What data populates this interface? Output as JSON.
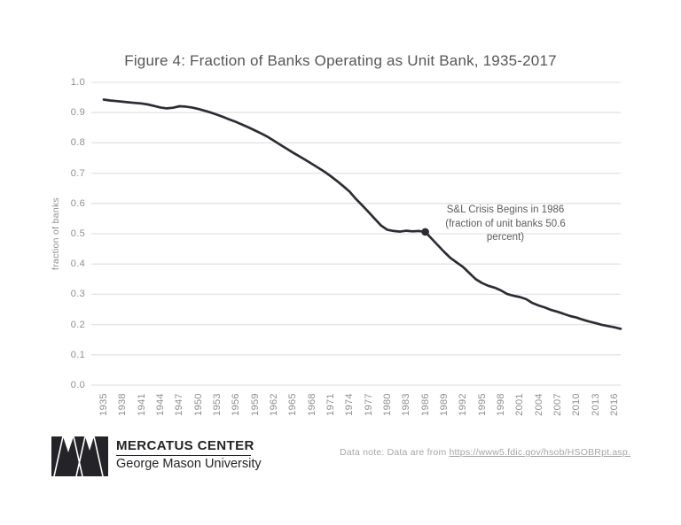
{
  "title": "Figure 4: Fraction of Banks Operating as Unit Bank, 1935-2017",
  "colors": {
    "line": "#2c2c35",
    "grid": "#e3e3e3",
    "tick_text": "#8f8f92",
    "title_text": "#56565a",
    "annotation_text": "#5d5d61",
    "note_text": "#a5a5a7",
    "logo": "#242428"
  },
  "chart_data": {
    "type": "line",
    "title": "Figure 4: Fraction of Banks Operating as Unit Bank, 1935-2017",
    "xlabel": "",
    "ylabel": "fraction of banks",
    "ylim": [
      0.0,
      1.0
    ],
    "grid": "horizontal",
    "legend": "none",
    "y_ticks": [
      0.0,
      0.1,
      0.2,
      0.3,
      0.4,
      0.5,
      0.6,
      0.7,
      0.8,
      0.9,
      1.0
    ],
    "x_ticks": [
      1935,
      1938,
      1941,
      1944,
      1947,
      1950,
      1953,
      1956,
      1959,
      1962,
      1965,
      1968,
      1971,
      1974,
      1977,
      1980,
      1983,
      1986,
      1989,
      1992,
      1995,
      1998,
      2001,
      2004,
      2007,
      2010,
      2013,
      2016
    ],
    "series": [
      {
        "name": "fraction of unit banks",
        "x_start": 1935,
        "x_end": 2017,
        "values": [
          0.943,
          0.94,
          0.938,
          0.936,
          0.934,
          0.932,
          0.93,
          0.927,
          0.922,
          0.917,
          0.914,
          0.916,
          0.921,
          0.92,
          0.917,
          0.912,
          0.906,
          0.9,
          0.893,
          0.885,
          0.877,
          0.869,
          0.86,
          0.851,
          0.841,
          0.831,
          0.82,
          0.807,
          0.794,
          0.781,
          0.768,
          0.756,
          0.744,
          0.731,
          0.718,
          0.705,
          0.69,
          0.674,
          0.657,
          0.639,
          0.615,
          0.594,
          0.572,
          0.549,
          0.527,
          0.513,
          0.509,
          0.507,
          0.51,
          0.508,
          0.509,
          0.506,
          0.484,
          0.462,
          0.44,
          0.42,
          0.405,
          0.39,
          0.37,
          0.35,
          0.337,
          0.328,
          0.322,
          0.313,
          0.301,
          0.295,
          0.291,
          0.284,
          0.271,
          0.263,
          0.256,
          0.248,
          0.242,
          0.235,
          0.228,
          0.223,
          0.216,
          0.21,
          0.205,
          0.199,
          0.195,
          0.191,
          0.186
        ]
      }
    ],
    "annotation": {
      "lines": [
        "S&L Crisis Begins in 1986",
        "(fraction of unit banks 50.6",
        "percent)"
      ],
      "marker_x": 1986,
      "marker_y": 0.506
    }
  },
  "footer": {
    "logo_line1": "MERCATUS CENTER",
    "logo_line2": "George Mason University",
    "data_note_prefix": "Data note: Data are from ",
    "data_note_link": "https://www5.fdic.gov/hsob/HSOBRpt.asp."
  }
}
